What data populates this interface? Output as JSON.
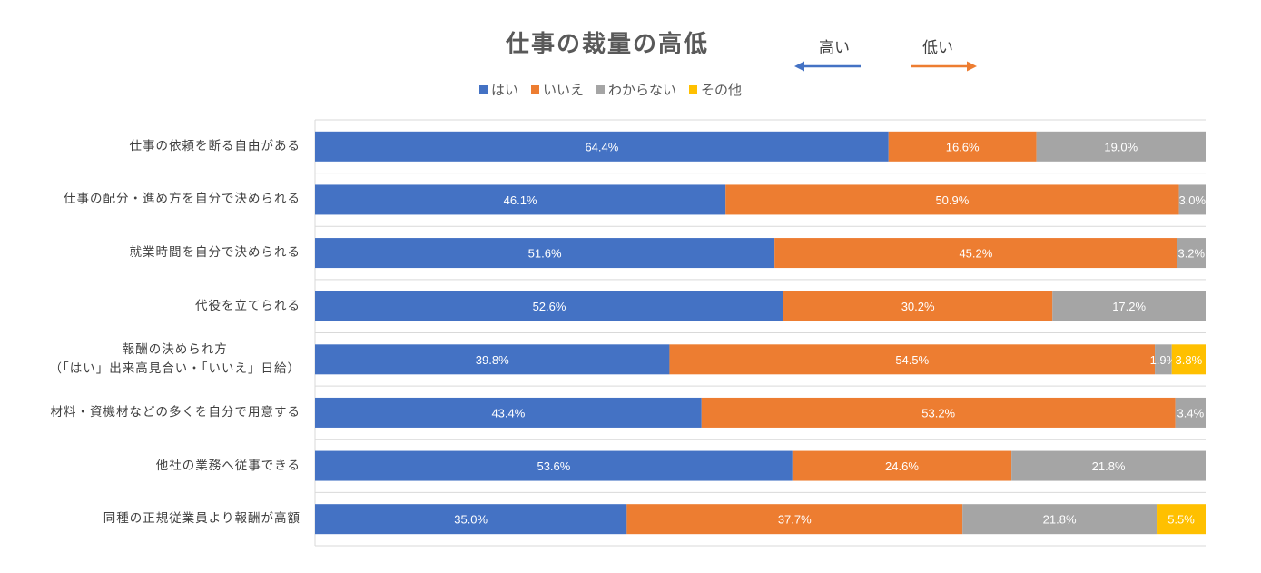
{
  "chart_data": {
    "type": "bar",
    "orientation": "horizontal",
    "stacked": "percent",
    "title": "仕事の裁量の高低",
    "legend_position": "top",
    "grid": true,
    "xlim": [
      0,
      100
    ],
    "unit": "%",
    "categories": [
      [
        "仕事の依頼を断る自由がある"
      ],
      [
        "仕事の配分・進め方を自分で決められる"
      ],
      [
        "就業時間を自分で決められる"
      ],
      [
        "代役を立てられる"
      ],
      [
        "報酬の決められ方",
        "（「はい」出来高見合い・「いいえ」日給）"
      ],
      [
        "材料・資機材などの多くを自分で用意する"
      ],
      [
        "他社の業務へ従事できる"
      ],
      [
        "同種の正規従業員より報酬が高額"
      ]
    ],
    "series": [
      {
        "name": "はい",
        "color": "#4472C4",
        "label_color": "#ffffff",
        "values": [
          64.4,
          46.1,
          51.6,
          52.6,
          39.8,
          43.4,
          53.6,
          35.0
        ],
        "labels": [
          "64.4%",
          "46.1%",
          "51.6%",
          "52.6%",
          "39.8%",
          "43.4%",
          "53.6%",
          "35.0%"
        ]
      },
      {
        "name": "いいえ",
        "color": "#ED7D31",
        "label_color": "#ffffff",
        "values": [
          16.6,
          50.9,
          45.2,
          30.2,
          54.5,
          53.2,
          24.6,
          37.7
        ],
        "labels": [
          "16.6%",
          "50.9%",
          "45.2%",
          "30.2%",
          "54.5%",
          "53.2%",
          "24.6%",
          "37.7%"
        ]
      },
      {
        "name": "わからない",
        "color": "#A5A5A5",
        "label_color": "#ffffff",
        "values": [
          19.0,
          3.0,
          3.2,
          17.2,
          1.9,
          3.4,
          21.8,
          21.8
        ],
        "labels": [
          "19.0%",
          "3.0%",
          "3.2%",
          "17.2%",
          "1.9%",
          "3.4%",
          "21.8%",
          "21.8%"
        ]
      },
      {
        "name": "その他",
        "color": "#FFC000",
        "label_color": "#ffffff",
        "values": [
          0,
          0,
          0,
          0,
          3.8,
          0,
          0,
          5.5
        ],
        "labels": [
          "",
          "",
          "",
          "",
          "3.8%",
          "",
          "",
          "5.5%"
        ]
      }
    ]
  },
  "annotation": {
    "high_label": "高い",
    "low_label": "低い",
    "high_color": "#4472C4",
    "low_color": "#ED7D31"
  }
}
